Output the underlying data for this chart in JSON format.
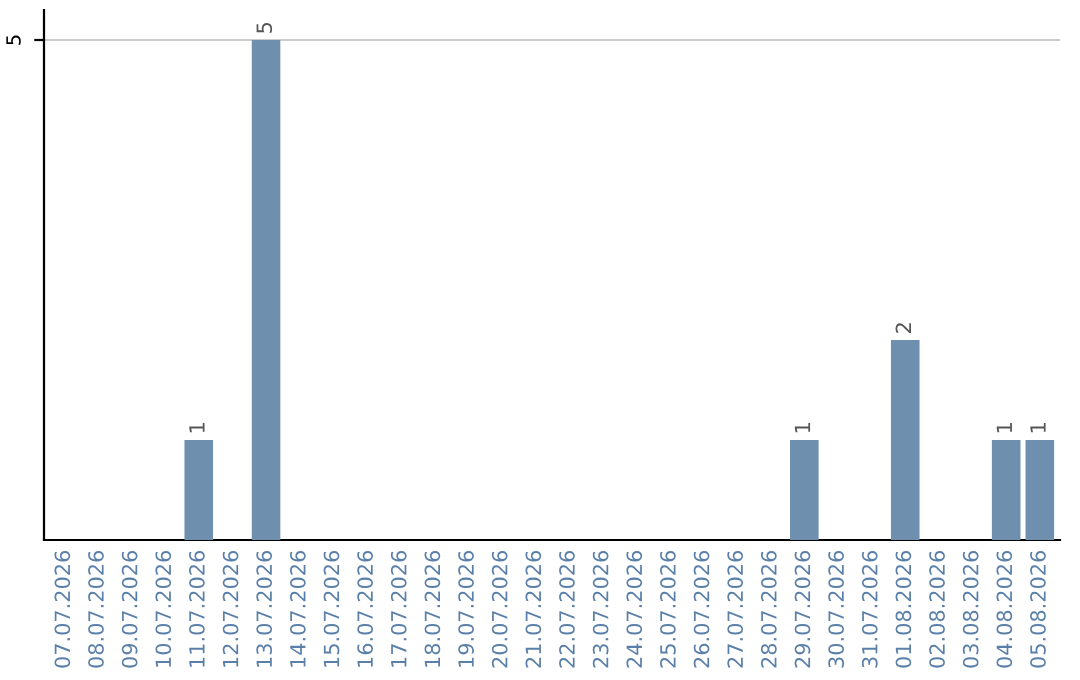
{
  "chart_data": {
    "type": "bar",
    "categories": [
      "07.07.2026",
      "08.07.2026",
      "09.07.2026",
      "10.07.2026",
      "11.07.2026",
      "12.07.2026",
      "13.07.2026",
      "14.07.2026",
      "15.07.2026",
      "16.07.2026",
      "17.07.2026",
      "18.07.2026",
      "19.07.2026",
      "20.07.2026",
      "21.07.2026",
      "22.07.2026",
      "23.07.2026",
      "24.07.2026",
      "25.07.2026",
      "26.07.2026",
      "27.07.2026",
      "28.07.2026",
      "29.07.2026",
      "30.07.2026",
      "31.07.2026",
      "01.08.2026",
      "02.08.2026",
      "03.08.2026",
      "04.08.2026",
      "05.08.2026"
    ],
    "values": [
      0,
      0,
      0,
      0,
      1,
      0,
      5,
      0,
      0,
      0,
      0,
      0,
      0,
      0,
      0,
      0,
      0,
      0,
      0,
      0,
      0,
      0,
      1,
      0,
      0,
      2,
      0,
      0,
      1,
      1
    ],
    "color": "#6f8fae",
    "value_labels": [
      null,
      null,
      null,
      null,
      "1",
      null,
      "5",
      null,
      null,
      null,
      null,
      null,
      null,
      null,
      null,
      null,
      null,
      null,
      null,
      null,
      null,
      null,
      "1",
      null,
      null,
      "2",
      null,
      null,
      "1",
      "1"
    ],
    "ylim": [
      0,
      5.3
    ],
    "yticks": [
      5
    ],
    "grid": "y"
  }
}
